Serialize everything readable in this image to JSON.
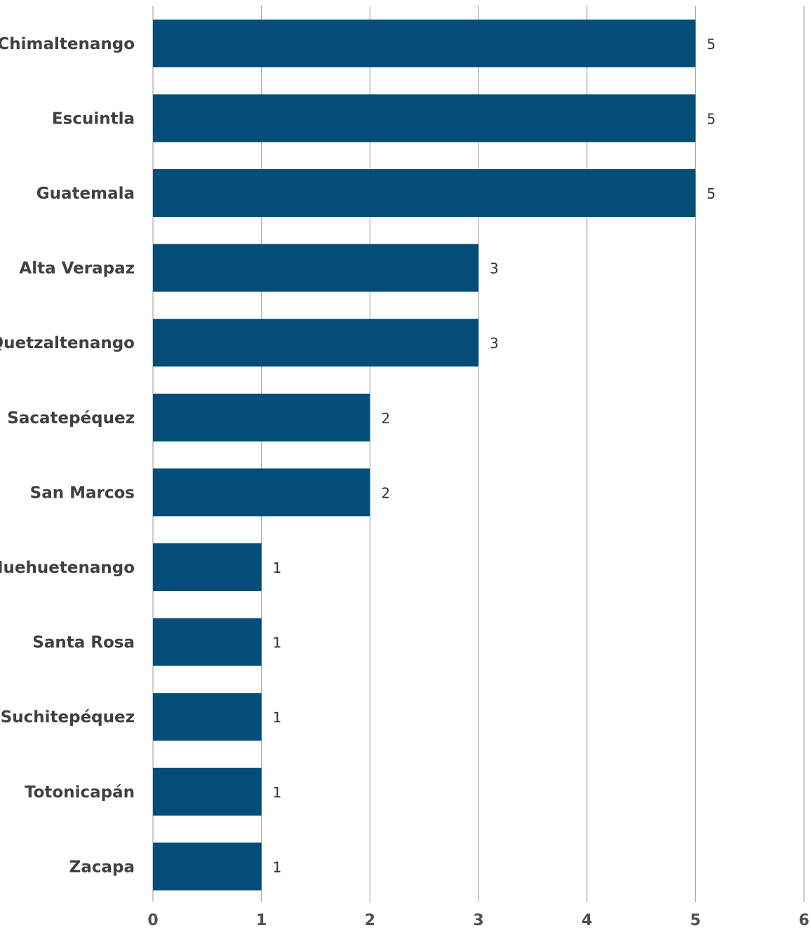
{
  "chart_data": {
    "type": "bar",
    "orientation": "horizontal",
    "categories": [
      "Chimaltenango",
      "Escuintla",
      "Guatemala",
      "Alta Verapaz",
      "Quetzaltenango",
      "Sacatepéquez",
      "San Marcos",
      "Huehuetenango",
      "Santa Rosa",
      "Suchitepéquez",
      "Totonicapán",
      "Zacapa"
    ],
    "values": [
      5,
      5,
      5,
      3,
      3,
      2,
      2,
      1,
      1,
      1,
      1,
      1
    ],
    "value_labels": [
      "5",
      "5",
      "5",
      "3",
      "3",
      "2",
      "2",
      "1",
      "1",
      "1",
      "1",
      "1"
    ],
    "x_ticks": [
      "0",
      "1",
      "2",
      "3",
      "4",
      "5",
      "6"
    ],
    "xlim": [
      0,
      6
    ],
    "title": "",
    "xlabel": "",
    "ylabel": "",
    "grid": true,
    "legend": "none",
    "bar_color": "#024e78"
  }
}
